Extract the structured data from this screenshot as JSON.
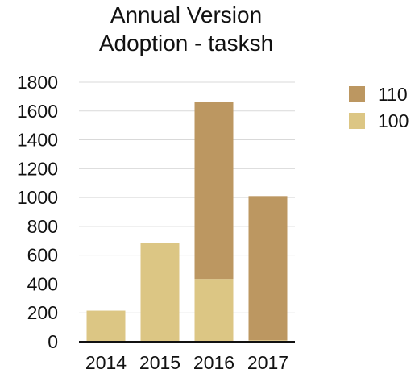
{
  "chart_data": {
    "type": "bar",
    "stacked": true,
    "title_lines": [
      "Annual Version",
      "Adoption - tasksh"
    ],
    "categories": [
      "2014",
      "2015",
      "2016",
      "2017"
    ],
    "series": [
      {
        "name": "100",
        "values": [
          215,
          685,
          435,
          10
        ],
        "color": "#dcc684"
      },
      {
        "name": "110",
        "values": [
          0,
          0,
          1227,
          1000
        ],
        "color": "#bc9761"
      }
    ],
    "legend_order": [
      "110",
      "100"
    ],
    "y_ticks": [
      0,
      200,
      400,
      600,
      800,
      1000,
      1200,
      1400,
      1600,
      1800
    ],
    "ylim": [
      0,
      1800
    ],
    "grid": true,
    "legend_position": "top-right",
    "xlabel": "",
    "ylabel": ""
  }
}
